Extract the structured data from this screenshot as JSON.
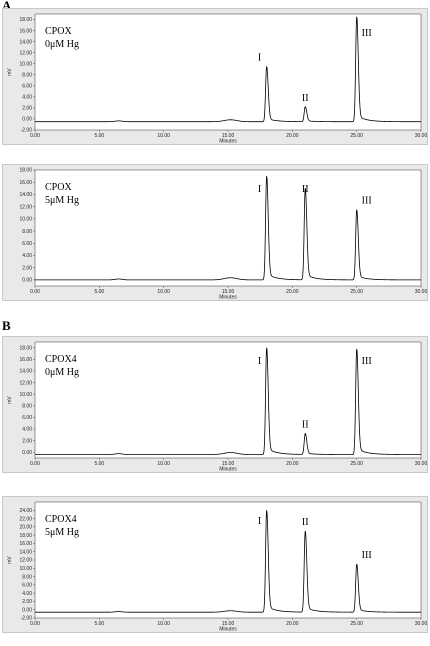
{
  "figure": {
    "section_a": "A",
    "section_b": "B",
    "colors": {
      "panel_bg": "#e9e9e9",
      "plot_bg": "#ffffff",
      "trace": "#000000"
    }
  },
  "chart_data": [
    {
      "type": "line",
      "sample": "CPOX",
      "condition": "0μM Hg",
      "xlabel": "Minutes",
      "ylabel": "mV",
      "xlim": [
        0,
        30
      ],
      "ylim": [
        -2,
        19
      ],
      "xticks": [
        "0.00",
        "5.00",
        "10.00",
        "15.00",
        "20.00",
        "25.00",
        "30.00"
      ],
      "yticks": [
        "-2.00",
        "0.00",
        "2.00",
        "4.00",
        "6.00",
        "8.00",
        "10.00",
        "12.00",
        "14.00",
        "16.00",
        "18.00"
      ],
      "peaks": [
        {
          "name": "I",
          "x": 18.0,
          "y": 9.5
        },
        {
          "name": "II",
          "x": 21.0,
          "y": 2.2
        },
        {
          "name": "III",
          "x": 25.0,
          "y": 18.5
        }
      ],
      "baseline": -0.5
    },
    {
      "type": "line",
      "sample": "CPOX",
      "condition": "5μM Hg",
      "xlabel": "Minutes",
      "ylabel": "",
      "xlim": [
        0,
        30
      ],
      "ylim": [
        -1,
        18
      ],
      "xticks": [
        "0.00",
        "5.00",
        "10.00",
        "15.00",
        "20.00",
        "25.00",
        "30.00"
      ],
      "yticks": [
        "0.00",
        "2.00",
        "4.00",
        "6.00",
        "8.00",
        "10.00",
        "12.00",
        "14.00",
        "16.00",
        "18.00"
      ],
      "peaks": [
        {
          "name": "I",
          "x": 18.0,
          "y": 17.0
        },
        {
          "name": "II",
          "x": 21.0,
          "y": 15.0
        },
        {
          "name": "III",
          "x": 25.0,
          "y": 11.5
        }
      ],
      "baseline": 0.0
    },
    {
      "type": "line",
      "sample": "CPOX4",
      "condition": "0μM Hg",
      "xlabel": "Minutes",
      "ylabel": "mV",
      "xlim": [
        0,
        30
      ],
      "ylim": [
        -1,
        19
      ],
      "xticks": [
        "0.00",
        "5.00",
        "10.00",
        "15.00",
        "20.00",
        "25.00",
        "30.00"
      ],
      "yticks": [
        "0.00",
        "2.00",
        "4.00",
        "6.00",
        "8.00",
        "10.00",
        "12.00",
        "14.00",
        "16.00",
        "18.00"
      ],
      "peaks": [
        {
          "name": "I",
          "x": 18.0,
          "y": 18.0
        },
        {
          "name": "II",
          "x": 21.0,
          "y": 3.2
        },
        {
          "name": "III",
          "x": 25.0,
          "y": 17.8
        }
      ],
      "baseline": -0.4
    },
    {
      "type": "line",
      "sample": "CPOX4",
      "condition": "5μM Hg",
      "xlabel": "Minutes",
      "ylabel": "mV",
      "xlim": [
        0,
        30
      ],
      "ylim": [
        -2,
        26
      ],
      "xticks": [
        "0.00",
        "5.00",
        "10.00",
        "15.00",
        "20.00",
        "25.00",
        "30.00"
      ],
      "yticks": [
        "-2.00",
        "0.00",
        "2.00",
        "4.00",
        "6.00",
        "8.00",
        "10.00",
        "12.00",
        "14.00",
        "16.00",
        "18.00",
        "20.00",
        "22.00",
        "24.00"
      ],
      "peaks": [
        {
          "name": "I",
          "x": 18.0,
          "y": 24.0
        },
        {
          "name": "II",
          "x": 21.0,
          "y": 19.0
        },
        {
          "name": "III",
          "x": 25.0,
          "y": 11.0
        }
      ],
      "baseline": -0.6
    }
  ]
}
